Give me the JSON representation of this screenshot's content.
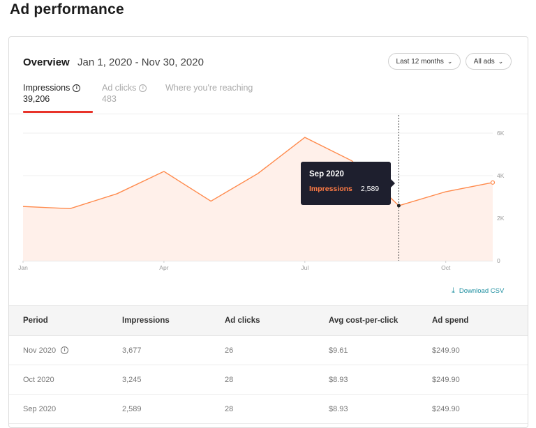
{
  "page": {
    "title": "Ad performance"
  },
  "overview": {
    "label": "Overview",
    "date_range": "Jan 1, 2020 - Nov 30, 2020",
    "range_select": "Last 12 months",
    "ads_select": "All ads"
  },
  "tabs": [
    {
      "label": "Impressions",
      "value": "39,206",
      "active": true
    },
    {
      "label": "Ad clicks",
      "value": "483",
      "active": false
    },
    {
      "label": "Where you're reaching",
      "value": "",
      "active": false
    }
  ],
  "chart_data": {
    "type": "area",
    "x_ticks": [
      "Jan",
      "Apr",
      "Jul",
      "Oct"
    ],
    "y_ticks": [
      "0",
      "2K",
      "4K",
      "6K"
    ],
    "ylim": [
      0,
      6000
    ],
    "series": [
      {
        "name": "Impressions",
        "x": [
          "Jan 2020",
          "Feb 2020",
          "Mar 2020",
          "Apr 2020",
          "May 2020",
          "Jun 2020",
          "Jul 2020",
          "Aug 2020",
          "Sep 2020",
          "Oct 2020",
          "Nov 2020"
        ],
        "values": [
          2550,
          2450,
          3150,
          4200,
          2800,
          4100,
          5800,
          4700,
          2589,
          3245,
          3677
        ]
      }
    ],
    "colors": {
      "line": "#ff8a4c",
      "fill": "#fff0ea"
    },
    "hover_index": 8
  },
  "tooltip": {
    "period": "Sep 2020",
    "metric": "Impressions",
    "value": "2,589"
  },
  "download_label": "Download CSV",
  "table": {
    "headers": [
      "Period",
      "Impressions",
      "Ad clicks",
      "Avg cost-per-click",
      "Ad spend"
    ],
    "rows": [
      [
        "Nov 2020",
        "3,677",
        "26",
        "$9.61",
        "$249.90"
      ],
      [
        "Oct 2020",
        "3,245",
        "28",
        "$8.93",
        "$249.90"
      ],
      [
        "Sep 2020",
        "2,589",
        "28",
        "$8.93",
        "$249.90"
      ]
    ]
  }
}
